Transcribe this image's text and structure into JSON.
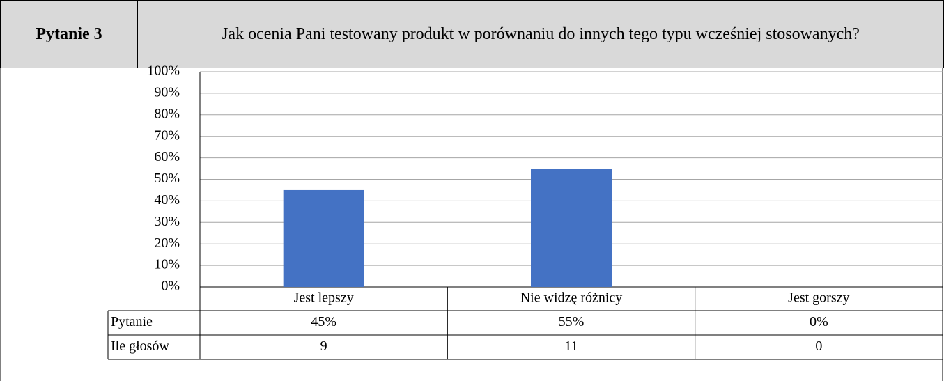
{
  "header": {
    "label": "Pytanie 3",
    "question": "Jak ocenia Pani testowany produkt w porównaniu do innych tego typu wcześniej stosowanych?"
  },
  "chart_data": {
    "type": "bar",
    "categories": [
      "Jest lepszy",
      "Nie widzę różnicy",
      "Jest gorszy"
    ],
    "series": [
      {
        "name": "Pytanie",
        "color": "#4472c4",
        "values": [
          45,
          55,
          0
        ],
        "value_labels": [
          "45%",
          "55%",
          "0%"
        ]
      }
    ],
    "votes": {
      "name": "Ile głosów",
      "values": [
        9,
        11,
        0
      ]
    },
    "ylim": [
      0,
      100
    ],
    "yticks": [
      {
        "value": 0,
        "label": "0%"
      },
      {
        "value": 10,
        "label": "10%"
      },
      {
        "value": 20,
        "label": "20%"
      },
      {
        "value": 30,
        "label": "30%"
      },
      {
        "value": 40,
        "label": "40%"
      },
      {
        "value": 50,
        "label": "50%"
      },
      {
        "value": 60,
        "label": "60%"
      },
      {
        "value": 70,
        "label": "70%"
      },
      {
        "value": 80,
        "label": "80%"
      },
      {
        "value": 90,
        "label": "90%"
      },
      {
        "value": 100,
        "label": "100%"
      }
    ],
    "grid": true
  }
}
